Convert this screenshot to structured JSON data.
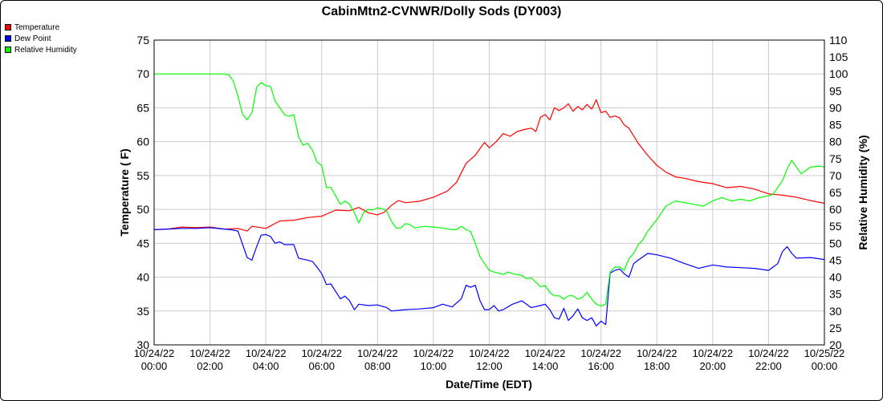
{
  "chart_data": {
    "type": "line",
    "title": "CabinMtn2-CVNWR/Dolly Sods (DY003)",
    "xlabel": "Date/Time (EDT)",
    "ylabel": "Temperature ( F)",
    "y2label": "Relative Humidity (%)",
    "ylim": [
      30,
      75
    ],
    "y2lim": [
      20,
      110
    ],
    "xlim": [
      0,
      24
    ],
    "yticks": [
      "30",
      "35",
      "40",
      "45",
      "50",
      "55",
      "60",
      "65",
      "70",
      "75"
    ],
    "y2ticks": [
      "20",
      "25",
      "30",
      "35",
      "40",
      "45",
      "50",
      "55",
      "60",
      "65",
      "70",
      "75",
      "80",
      "85",
      "90",
      "95",
      "100",
      "105",
      "110"
    ],
    "xticks": [
      {
        "date": "10/24/22",
        "time": "00:00"
      },
      {
        "date": "10/24/22",
        "time": "02:00"
      },
      {
        "date": "10/24/22",
        "time": "04:00"
      },
      {
        "date": "10/24/22",
        "time": "06:00"
      },
      {
        "date": "10/24/22",
        "time": "08:00"
      },
      {
        "date": "10/24/22",
        "time": "10:00"
      },
      {
        "date": "10/24/22",
        "time": "12:00"
      },
      {
        "date": "10/24/22",
        "time": "14:00"
      },
      {
        "date": "10/24/22",
        "time": "16:00"
      },
      {
        "date": "10/24/22",
        "time": "18:00"
      },
      {
        "date": "10/24/22",
        "time": "20:00"
      },
      {
        "date": "10/24/22",
        "time": "22:00"
      },
      {
        "date": "10/25/22",
        "time": "00:00"
      }
    ],
    "grid": true,
    "legend_position": "top-left",
    "series": [
      {
        "name": "Temperature",
        "color": "#ff0000",
        "axis": "left",
        "points": [
          [
            0.0,
            47.0
          ],
          [
            0.5,
            47.1
          ],
          [
            1.0,
            47.4
          ],
          [
            1.5,
            47.3
          ],
          [
            2.0,
            47.4
          ],
          [
            2.5,
            47.1
          ],
          [
            3.0,
            47.2
          ],
          [
            3.33,
            46.8
          ],
          [
            3.5,
            47.5
          ],
          [
            4.0,
            47.2
          ],
          [
            4.5,
            48.3
          ],
          [
            5.0,
            48.4
          ],
          [
            5.5,
            48.8
          ],
          [
            6.0,
            49.0
          ],
          [
            6.5,
            49.9
          ],
          [
            7.0,
            49.8
          ],
          [
            7.33,
            50.3
          ],
          [
            7.67,
            49.5
          ],
          [
            8.0,
            49.2
          ],
          [
            8.25,
            49.6
          ],
          [
            8.5,
            50.6
          ],
          [
            8.75,
            51.3
          ],
          [
            9.0,
            51.0
          ],
          [
            9.5,
            51.2
          ],
          [
            10.0,
            51.8
          ],
          [
            10.5,
            52.7
          ],
          [
            10.83,
            54.0
          ],
          [
            11.17,
            56.8
          ],
          [
            11.5,
            58.0
          ],
          [
            11.83,
            59.9
          ],
          [
            12.0,
            59.1
          ],
          [
            12.25,
            60.0
          ],
          [
            12.5,
            61.2
          ],
          [
            12.75,
            60.8
          ],
          [
            13.0,
            61.5
          ],
          [
            13.25,
            61.8
          ],
          [
            13.5,
            62.0
          ],
          [
            13.67,
            61.5
          ],
          [
            13.83,
            63.6
          ],
          [
            14.0,
            64.0
          ],
          [
            14.17,
            63.2
          ],
          [
            14.33,
            65.0
          ],
          [
            14.5,
            64.6
          ],
          [
            14.67,
            65.0
          ],
          [
            14.83,
            65.6
          ],
          [
            15.0,
            64.5
          ],
          [
            15.17,
            65.2
          ],
          [
            15.33,
            64.7
          ],
          [
            15.5,
            65.5
          ],
          [
            15.67,
            64.8
          ],
          [
            15.83,
            66.2
          ],
          [
            16.0,
            64.3
          ],
          [
            16.17,
            64.5
          ],
          [
            16.33,
            63.6
          ],
          [
            16.5,
            63.8
          ],
          [
            16.67,
            63.5
          ],
          [
            16.83,
            62.5
          ],
          [
            17.0,
            62.0
          ],
          [
            17.33,
            59.8
          ],
          [
            17.67,
            58.0
          ],
          [
            18.0,
            56.5
          ],
          [
            18.33,
            55.5
          ],
          [
            18.67,
            54.8
          ],
          [
            19.0,
            54.6
          ],
          [
            19.5,
            54.1
          ],
          [
            20.0,
            53.8
          ],
          [
            20.5,
            53.2
          ],
          [
            21.0,
            53.4
          ],
          [
            21.5,
            53.0
          ],
          [
            22.0,
            52.3
          ],
          [
            22.5,
            52.1
          ],
          [
            23.0,
            51.8
          ],
          [
            23.5,
            51.3
          ],
          [
            24.0,
            50.9
          ]
        ]
      },
      {
        "name": "Dew Point",
        "color": "#0000ff",
        "axis": "left",
        "points": [
          [
            0.0,
            47.0
          ],
          [
            0.5,
            47.1
          ],
          [
            1.0,
            47.2
          ],
          [
            1.5,
            47.2
          ],
          [
            2.0,
            47.3
          ],
          [
            2.5,
            47.1
          ],
          [
            2.75,
            47.0
          ],
          [
            3.0,
            46.8
          ],
          [
            3.17,
            44.8
          ],
          [
            3.33,
            42.9
          ],
          [
            3.5,
            42.5
          ],
          [
            3.67,
            44.5
          ],
          [
            3.83,
            46.2
          ],
          [
            4.0,
            46.3
          ],
          [
            4.17,
            46.0
          ],
          [
            4.33,
            45.0
          ],
          [
            4.5,
            45.2
          ],
          [
            4.67,
            44.8
          ],
          [
            5.0,
            44.8
          ],
          [
            5.17,
            42.8
          ],
          [
            5.5,
            42.5
          ],
          [
            5.67,
            42.3
          ],
          [
            5.83,
            41.5
          ],
          [
            6.0,
            40.5
          ],
          [
            6.17,
            38.9
          ],
          [
            6.33,
            39.0
          ],
          [
            6.5,
            37.9
          ],
          [
            6.67,
            36.8
          ],
          [
            6.83,
            37.2
          ],
          [
            7.0,
            36.5
          ],
          [
            7.17,
            35.2
          ],
          [
            7.33,
            36.0
          ],
          [
            7.67,
            35.8
          ],
          [
            8.0,
            35.9
          ],
          [
            8.33,
            35.5
          ],
          [
            8.5,
            35.0
          ],
          [
            9.0,
            35.2
          ],
          [
            9.5,
            35.3
          ],
          [
            10.0,
            35.5
          ],
          [
            10.33,
            36.0
          ],
          [
            10.67,
            35.6
          ],
          [
            11.0,
            36.8
          ],
          [
            11.17,
            38.8
          ],
          [
            11.33,
            38.5
          ],
          [
            11.5,
            38.8
          ],
          [
            11.67,
            36.5
          ],
          [
            11.83,
            35.2
          ],
          [
            12.0,
            35.2
          ],
          [
            12.17,
            35.8
          ],
          [
            12.33,
            35.0
          ],
          [
            12.5,
            35.2
          ],
          [
            12.83,
            36.0
          ],
          [
            13.17,
            36.5
          ],
          [
            13.5,
            35.5
          ],
          [
            13.83,
            35.8
          ],
          [
            14.0,
            36.0
          ],
          [
            14.17,
            35.2
          ],
          [
            14.33,
            34.0
          ],
          [
            14.5,
            33.8
          ],
          [
            14.67,
            35.4
          ],
          [
            14.83,
            33.6
          ],
          [
            15.0,
            34.3
          ],
          [
            15.17,
            35.3
          ],
          [
            15.33,
            34.0
          ],
          [
            15.5,
            33.6
          ],
          [
            15.67,
            34.0
          ],
          [
            15.83,
            32.8
          ],
          [
            16.0,
            33.5
          ],
          [
            16.17,
            33.0
          ],
          [
            16.33,
            40.6
          ],
          [
            16.5,
            41.0
          ],
          [
            16.67,
            41.2
          ],
          [
            16.83,
            40.5
          ],
          [
            17.0,
            40.0
          ],
          [
            17.17,
            42.0
          ],
          [
            17.33,
            42.5
          ],
          [
            17.5,
            43.0
          ],
          [
            17.67,
            43.5
          ],
          [
            18.0,
            43.3
          ],
          [
            18.5,
            42.8
          ],
          [
            19.0,
            42.0
          ],
          [
            19.5,
            41.3
          ],
          [
            20.0,
            41.8
          ],
          [
            20.5,
            41.5
          ],
          [
            21.0,
            41.4
          ],
          [
            21.5,
            41.3
          ],
          [
            22.0,
            41.0
          ],
          [
            22.17,
            41.5
          ],
          [
            22.33,
            42.0
          ],
          [
            22.5,
            43.8
          ],
          [
            22.67,
            44.5
          ],
          [
            22.83,
            43.5
          ],
          [
            23.0,
            42.8
          ],
          [
            23.5,
            42.9
          ],
          [
            24.0,
            42.6
          ]
        ]
      },
      {
        "name": "Relative Humidity",
        "color": "#00ff00",
        "axis": "right",
        "points": [
          [
            0.0,
            100
          ],
          [
            0.5,
            100
          ],
          [
            1.0,
            100
          ],
          [
            1.5,
            100
          ],
          [
            2.0,
            100
          ],
          [
            2.5,
            100
          ],
          [
            2.67,
            99.8
          ],
          [
            2.83,
            98
          ],
          [
            3.0,
            93.5
          ],
          [
            3.17,
            88
          ],
          [
            3.33,
            86.5
          ],
          [
            3.5,
            88.5
          ],
          [
            3.67,
            96
          ],
          [
            3.83,
            97.5
          ],
          [
            4.0,
            96.5
          ],
          [
            4.17,
            96.3
          ],
          [
            4.33,
            92
          ],
          [
            4.5,
            90
          ],
          [
            4.67,
            88
          ],
          [
            4.83,
            87.5
          ],
          [
            5.0,
            88
          ],
          [
            5.17,
            81.5
          ],
          [
            5.33,
            79
          ],
          [
            5.5,
            79.5
          ],
          [
            5.67,
            77.5
          ],
          [
            5.83,
            74
          ],
          [
            6.0,
            73
          ],
          [
            6.17,
            66.5
          ],
          [
            6.33,
            66.5
          ],
          [
            6.5,
            64
          ],
          [
            6.67,
            61.5
          ],
          [
            6.83,
            62.5
          ],
          [
            7.0,
            61.5
          ],
          [
            7.17,
            59
          ],
          [
            7.33,
            56
          ],
          [
            7.5,
            59
          ],
          [
            7.67,
            60
          ],
          [
            7.83,
            59.8
          ],
          [
            8.0,
            60.5
          ],
          [
            8.17,
            60.2
          ],
          [
            8.33,
            59.5
          ],
          [
            8.5,
            56.5
          ],
          [
            8.67,
            54.5
          ],
          [
            8.83,
            54.5
          ],
          [
            9.0,
            55.8
          ],
          [
            9.17,
            55.5
          ],
          [
            9.33,
            54.5
          ],
          [
            9.67,
            55
          ],
          [
            10.0,
            54.8
          ],
          [
            10.33,
            54.5
          ],
          [
            10.67,
            54
          ],
          [
            10.83,
            54
          ],
          [
            11.0,
            55
          ],
          [
            11.17,
            54
          ],
          [
            11.33,
            53.5
          ],
          [
            11.5,
            50
          ],
          [
            11.67,
            46
          ],
          [
            11.83,
            44
          ],
          [
            12.0,
            42
          ],
          [
            12.17,
            41.5
          ],
          [
            12.5,
            40.8
          ],
          [
            12.67,
            41.5
          ],
          [
            12.83,
            41
          ],
          [
            13.17,
            40.5
          ],
          [
            13.33,
            39.5
          ],
          [
            13.5,
            39.8
          ],
          [
            13.67,
            38.5
          ],
          [
            13.83,
            37.2
          ],
          [
            14.0,
            37.5
          ],
          [
            14.17,
            35.5
          ],
          [
            14.33,
            34.5
          ],
          [
            14.5,
            34.5
          ],
          [
            14.67,
            33.5
          ],
          [
            14.83,
            34.5
          ],
          [
            15.0,
            34.5
          ],
          [
            15.17,
            33.5
          ],
          [
            15.33,
            34
          ],
          [
            15.5,
            35.5
          ],
          [
            15.67,
            33.5
          ],
          [
            15.83,
            32
          ],
          [
            16.0,
            31.5
          ],
          [
            16.17,
            32
          ],
          [
            16.33,
            41.5
          ],
          [
            16.5,
            43
          ],
          [
            16.67,
            43
          ],
          [
            16.83,
            42
          ],
          [
            17.0,
            45.5
          ],
          [
            17.17,
            47
          ],
          [
            17.33,
            49.5
          ],
          [
            17.5,
            51
          ],
          [
            17.67,
            53.5
          ],
          [
            18.0,
            57
          ],
          [
            18.33,
            61
          ],
          [
            18.67,
            62.5
          ],
          [
            19.0,
            62
          ],
          [
            19.33,
            61.5
          ],
          [
            19.67,
            61
          ],
          [
            20.0,
            62.5
          ],
          [
            20.33,
            63.5
          ],
          [
            20.67,
            62.5
          ],
          [
            21.0,
            63
          ],
          [
            21.33,
            62.5
          ],
          [
            21.67,
            63.5
          ],
          [
            22.0,
            64
          ],
          [
            22.17,
            64.5
          ],
          [
            22.33,
            66.5
          ],
          [
            22.5,
            68.5
          ],
          [
            22.67,
            72
          ],
          [
            22.83,
            74.5
          ],
          [
            23.0,
            72.5
          ],
          [
            23.17,
            70.5
          ],
          [
            23.33,
            71.5
          ],
          [
            23.5,
            72.5
          ],
          [
            23.83,
            72.8
          ],
          [
            24.0,
            72.5
          ]
        ]
      }
    ]
  }
}
